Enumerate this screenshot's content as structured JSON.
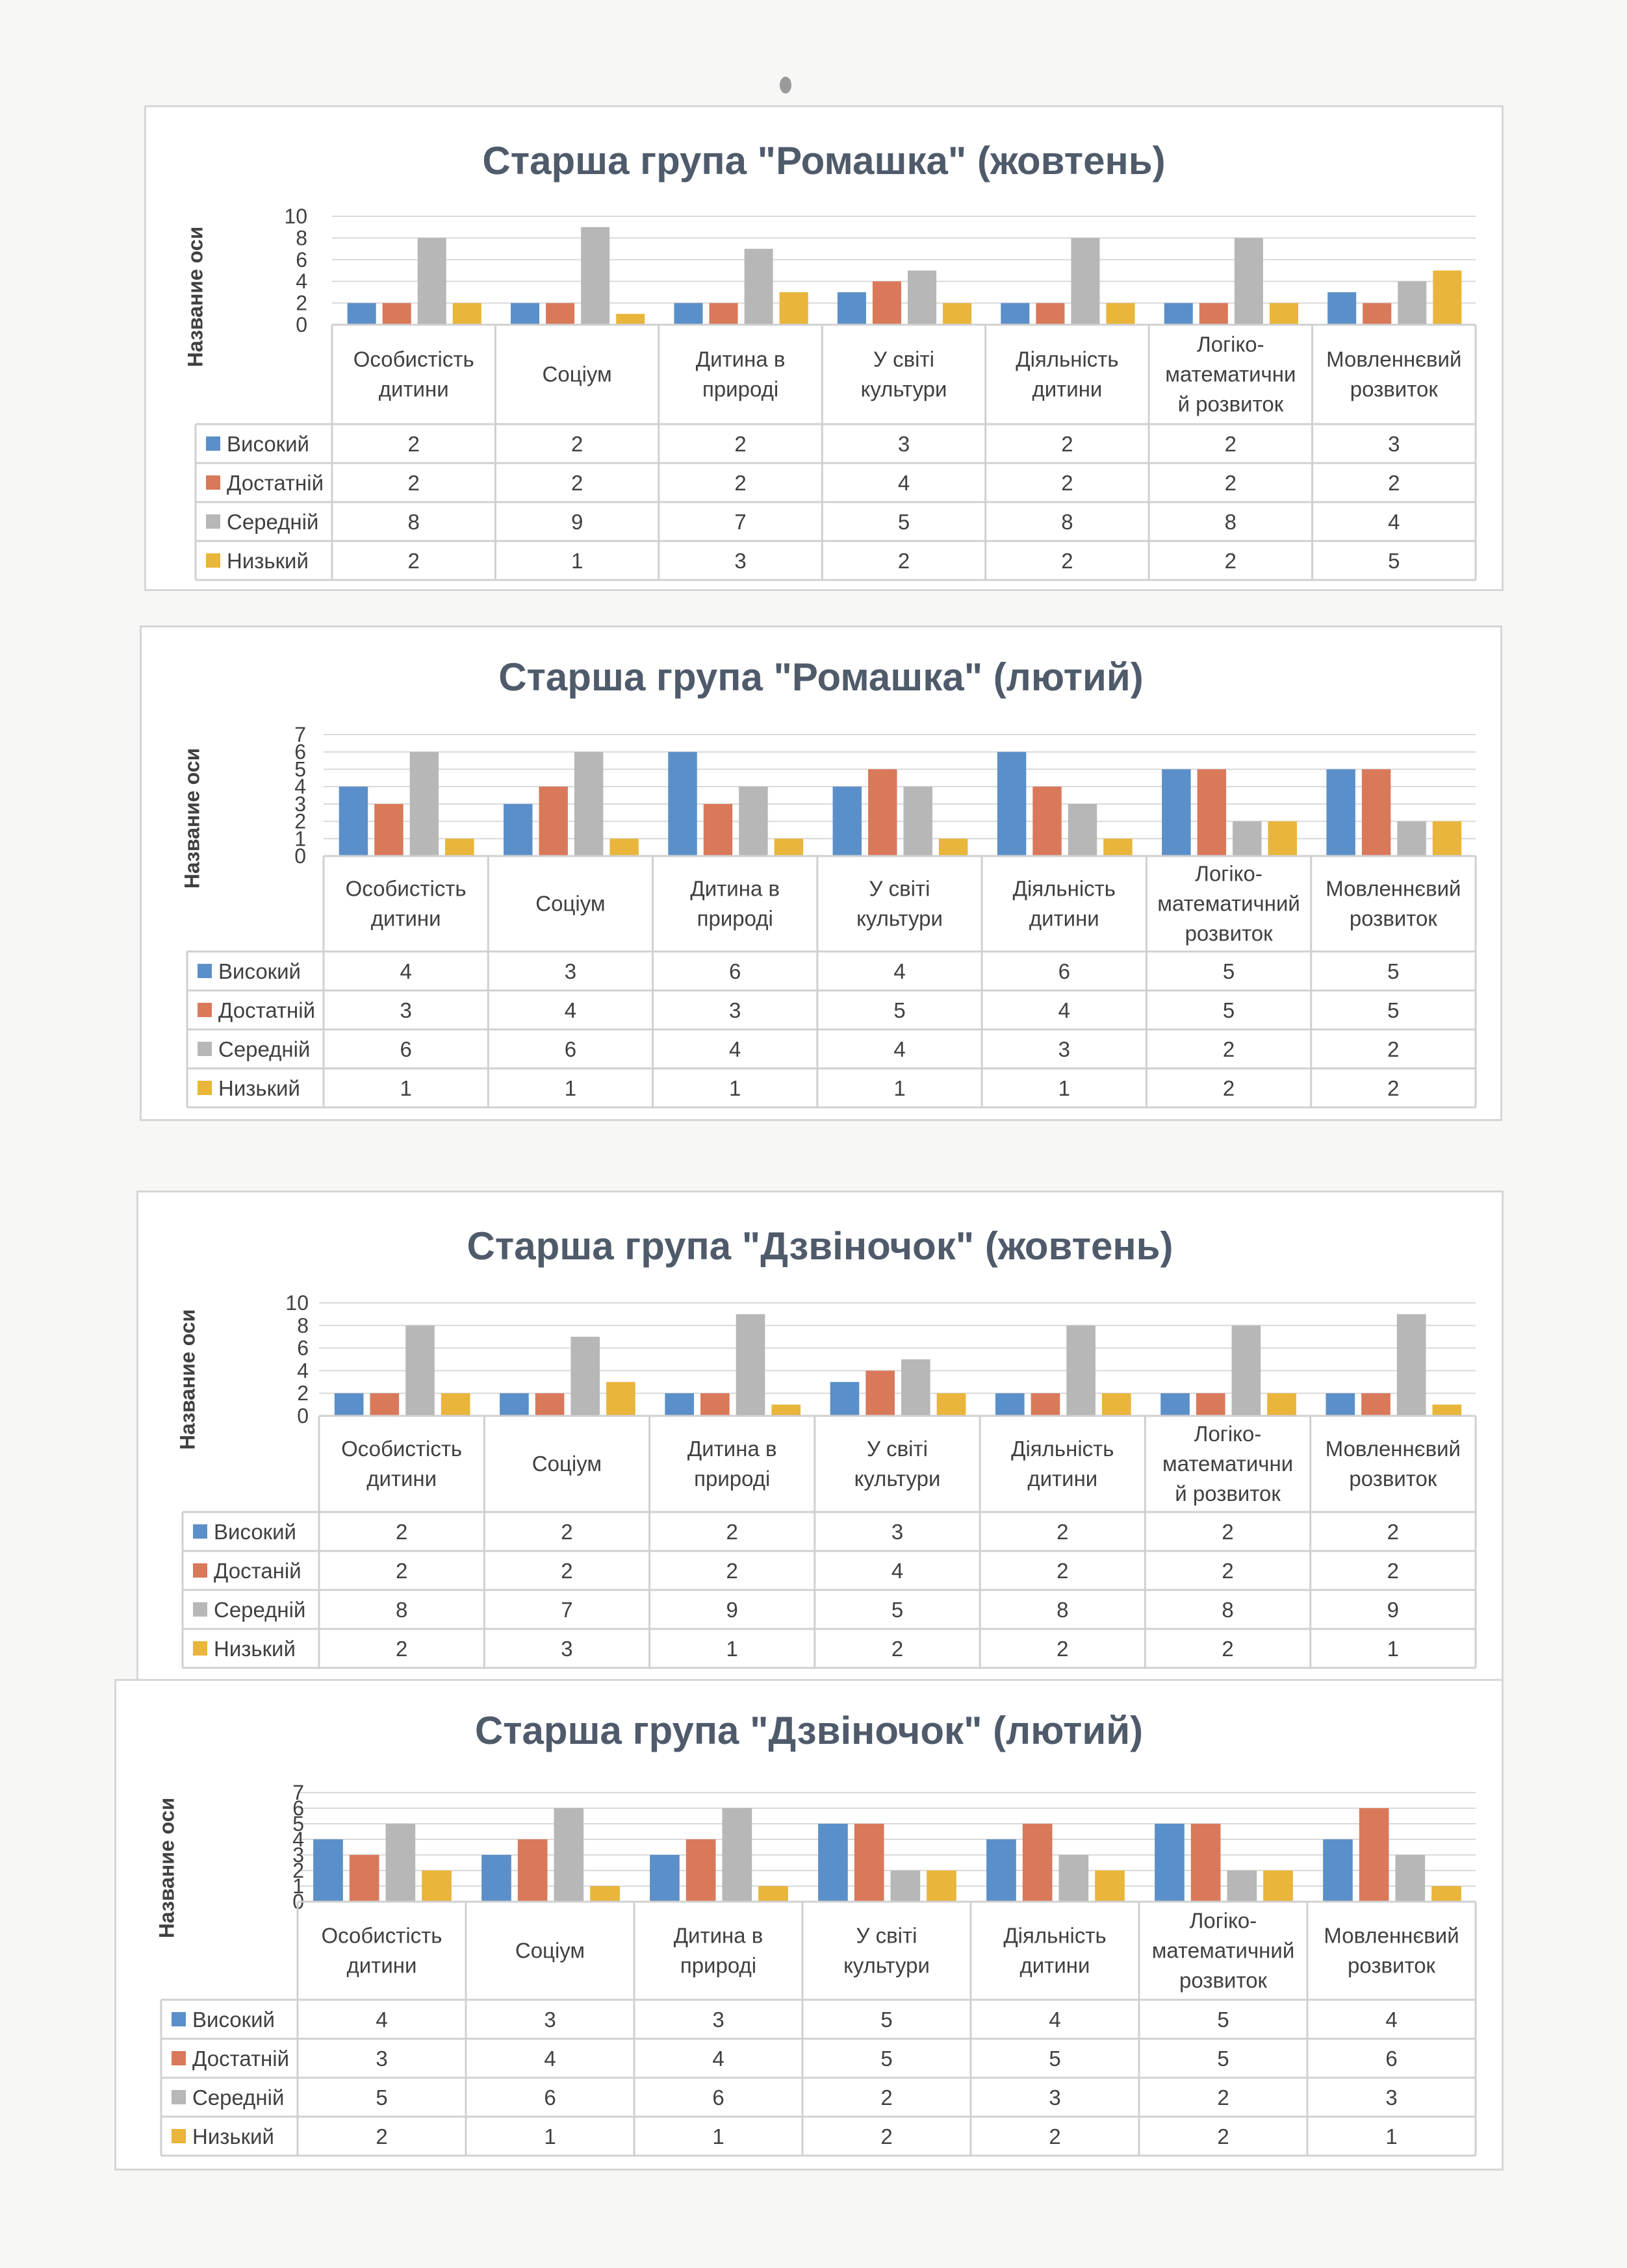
{
  "colors": {
    "high": "#5b8fc9",
    "sufficient": "#d9795a",
    "medium": "#b7b7b7",
    "low": "#e9b53a",
    "grid": "#d9d9d9",
    "table_line": "#d0d0d0",
    "title": "#4f5b6b"
  },
  "chart_data": [
    {
      "type": "bar",
      "title": "Старша група \"Ромашка\" (жовтень)",
      "ylabel": "Название оси",
      "ylim": [
        0,
        10
      ],
      "yticks": [
        "0",
        "2",
        "4",
        "6",
        "8",
        "10"
      ],
      "categories": [
        [
          "Особистість",
          "дитини"
        ],
        [
          "Соціум"
        ],
        [
          "Дитина в",
          "природі"
        ],
        [
          "У світі",
          "культури"
        ],
        [
          "Діяльність",
          "дитини"
        ],
        [
          "Логіко-",
          "математични",
          "й розвиток"
        ],
        [
          "Мовленнєвий",
          "розвиток"
        ]
      ],
      "series": [
        {
          "name": "Високий",
          "values": [
            2,
            2,
            2,
            3,
            2,
            2,
            3
          ]
        },
        {
          "name": "Достатній",
          "values": [
            2,
            2,
            2,
            4,
            2,
            2,
            2
          ]
        },
        {
          "name": "Середній",
          "values": [
            8,
            9,
            7,
            5,
            8,
            8,
            4
          ]
        },
        {
          "name": "Низький",
          "values": [
            2,
            1,
            3,
            2,
            2,
            2,
            5
          ]
        }
      ],
      "legend": "data-table"
    },
    {
      "type": "bar",
      "title": "Старша група \"Ромашка\" (лютий)",
      "ylabel": "Название оси",
      "ylim": [
        0,
        7
      ],
      "yticks": [
        "0",
        "1",
        "2",
        "3",
        "4",
        "5",
        "6",
        "7"
      ],
      "categories": [
        [
          "Особистість",
          "дитини"
        ],
        [
          "Соціум"
        ],
        [
          "Дитина в",
          "природі"
        ],
        [
          "У світі",
          "культури"
        ],
        [
          "Діяльність",
          "дитини"
        ],
        [
          "Логіко-",
          "математичний",
          "розвиток"
        ],
        [
          "Мовленнєвий",
          "розвиток"
        ]
      ],
      "series": [
        {
          "name": "Високий",
          "values": [
            4,
            3,
            6,
            4,
            6,
            5,
            5
          ]
        },
        {
          "name": "Достатній",
          "values": [
            3,
            4,
            3,
            5,
            4,
            5,
            5
          ]
        },
        {
          "name": "Середній",
          "values": [
            6,
            6,
            4,
            4,
            3,
            2,
            2
          ]
        },
        {
          "name": "Низький",
          "values": [
            1,
            1,
            1,
            1,
            1,
            2,
            2
          ]
        }
      ],
      "legend": "data-table"
    },
    {
      "type": "bar",
      "title": "Старша група \"Дзвіночок\" (жовтень)",
      "ylabel": "Название оси",
      "ylim": [
        0,
        10
      ],
      "yticks": [
        "0",
        "2",
        "4",
        "6",
        "8",
        "10"
      ],
      "categories": [
        [
          "Особистість",
          "дитини"
        ],
        [
          "Соціум"
        ],
        [
          "Дитина в",
          "природі"
        ],
        [
          "У світі",
          "культури"
        ],
        [
          "Діяльність",
          "дитини"
        ],
        [
          "Логіко-",
          "математични",
          "й розвиток"
        ],
        [
          "Мовленнєвий",
          "розвиток"
        ]
      ],
      "series": [
        {
          "name": "Високий",
          "values": [
            2,
            2,
            2,
            3,
            2,
            2,
            2
          ]
        },
        {
          "name": "Достаній",
          "values": [
            2,
            2,
            2,
            4,
            2,
            2,
            2
          ]
        },
        {
          "name": "Середній",
          "values": [
            8,
            7,
            9,
            5,
            8,
            8,
            9
          ]
        },
        {
          "name": "Низький",
          "values": [
            2,
            3,
            1,
            2,
            2,
            2,
            1
          ]
        }
      ],
      "legend": "data-table"
    },
    {
      "type": "bar",
      "title": "Старша група \"Дзвіночок\" (лютий)",
      "ylabel": "Название оси",
      "ylim": [
        0,
        7
      ],
      "yticks": [
        "0",
        "1",
        "2",
        "3",
        "4",
        "5",
        "6",
        "7"
      ],
      "categories": [
        [
          "Особистість",
          "дитини"
        ],
        [
          "Соціум"
        ],
        [
          "Дитина в",
          "природі"
        ],
        [
          "У світі",
          "культури"
        ],
        [
          "Діяльність",
          "дитини"
        ],
        [
          "Логіко-",
          "математичний",
          "розвиток"
        ],
        [
          "Мовленнєвий",
          "розвиток"
        ]
      ],
      "series": [
        {
          "name": "Високий",
          "values": [
            4,
            3,
            3,
            5,
            4,
            5,
            4
          ]
        },
        {
          "name": "Достатній",
          "values": [
            3,
            4,
            4,
            5,
            5,
            5,
            6
          ]
        },
        {
          "name": "Середній",
          "values": [
            5,
            6,
            6,
            2,
            3,
            2,
            3
          ]
        },
        {
          "name": "Низький",
          "values": [
            2,
            1,
            1,
            2,
            2,
            2,
            1
          ]
        }
      ],
      "legend": "data-table"
    }
  ]
}
